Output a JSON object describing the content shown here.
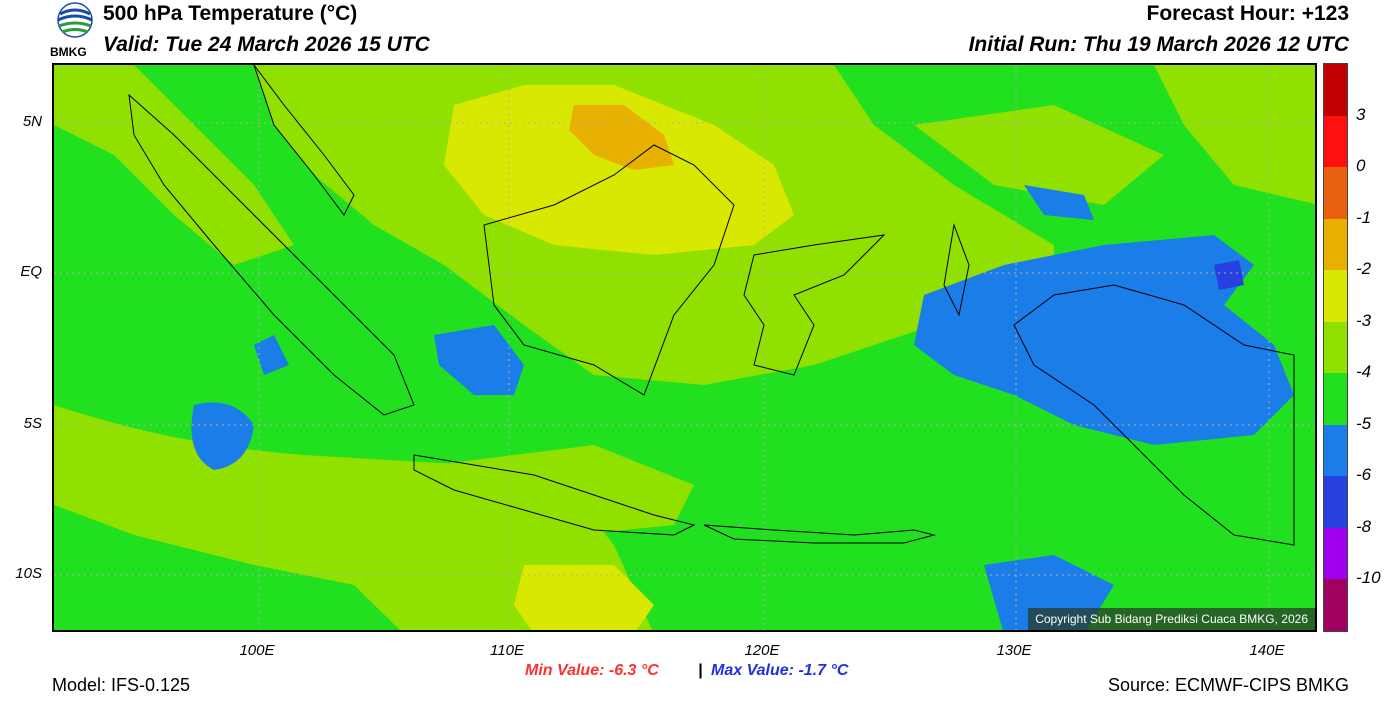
{
  "header": {
    "title": "500 hPa Temperature (°C)",
    "valid": "Valid: Tue 24 March 2026 15 UTC",
    "forecast_hour": "Forecast Hour: +123",
    "initial_run": "Initial Run: Thu 19 March 2026 12 UTC",
    "logo_text": "BMKG"
  },
  "map": {
    "lat_labels": [
      "5N",
      "EQ",
      "5S",
      "10S"
    ],
    "lon_labels": [
      "100E",
      "110E",
      "120E",
      "130E",
      "140E"
    ],
    "copyright": "Copyright Sub Bidang Prediksi Cuaca BMKG, 2026"
  },
  "colorbar": {
    "labels": [
      "3",
      "0",
      "-1",
      "-2",
      "-3",
      "-4",
      "-5",
      "-6",
      "-8",
      "-10"
    ],
    "colors": [
      "#c00000",
      "#ff1010",
      "#e86010",
      "#e8b000",
      "#d8e800",
      "#90e000",
      "#20e020",
      "#1a7de8",
      "#2840e0",
      "#a000f0",
      "#a00060"
    ]
  },
  "stats": {
    "min": "Min Value: -6.3 °C",
    "separator": "|",
    "max": "Max Value: -1.7 °C",
    "min_color": "#ff3030",
    "max_color": "#2030e0"
  },
  "footer": {
    "model": "Model: IFS-0.125",
    "source": "Source: ECMWF-CIPS BMKG"
  }
}
